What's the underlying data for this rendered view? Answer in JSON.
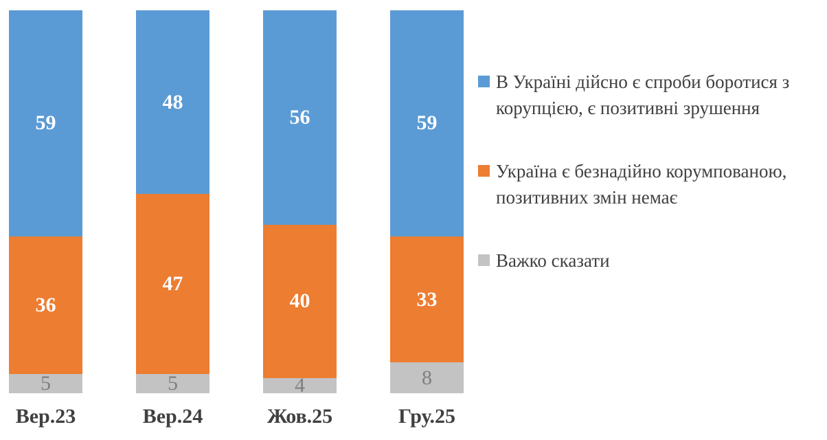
{
  "chart_data": {
    "type": "bar",
    "subtype": "stacked-column-100-percent",
    "title": "",
    "xlabel": "",
    "ylabel": "",
    "ylim": [
      0,
      100
    ],
    "grid": false,
    "legend_position": "right",
    "categories": [
      "Вер.23",
      "Вер.24",
      "Жов.25",
      "Гру.25"
    ],
    "series": [
      {
        "name": "В Україні дійсно є спроби боротися з корупцією, є позитивні зрушення",
        "color": "#5B9BD5",
        "label_color": "#FFFFFF",
        "label_bold": true,
        "values": [
          59,
          48,
          56,
          59
        ]
      },
      {
        "name": "Україна є безнадійно корумпованою, позитивних змін немає",
        "color": "#ED7D31",
        "label_color": "#FFFFFF",
        "label_bold": true,
        "values": [
          36,
          47,
          40,
          33
        ]
      },
      {
        "name": "Важко сказати",
        "color": "#C3C3C3",
        "label_color": "#7F7F7F",
        "label_bold": false,
        "values": [
          5,
          5,
          4,
          8
        ]
      }
    ],
    "stack_order_top_to_bottom": [
      0,
      1,
      2
    ],
    "category_label_color": "#404040",
    "legend_text_color": "#404040"
  }
}
